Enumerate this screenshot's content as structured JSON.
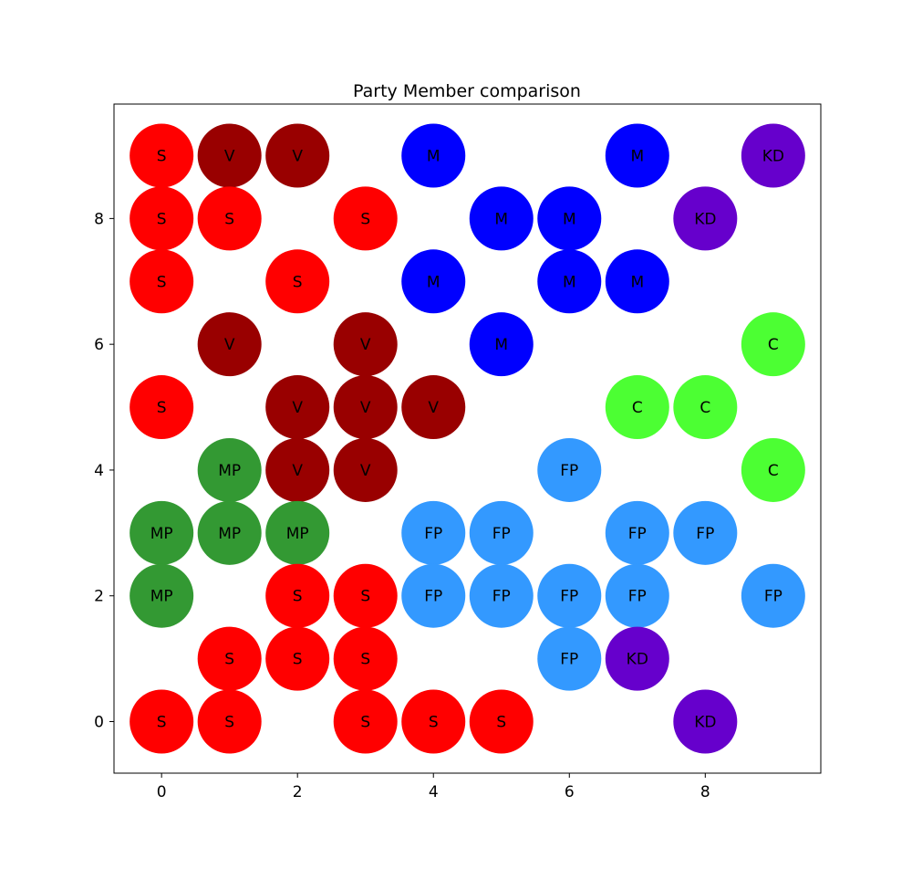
{
  "chart_data": {
    "type": "scatter",
    "title": "Party Member comparison",
    "xlabel": "",
    "ylabel": "",
    "xlim": [
      -0.7,
      9.7
    ],
    "ylim": [
      -0.82,
      9.82
    ],
    "xticks": [
      0,
      2,
      4,
      6,
      8
    ],
    "yticks": [
      0,
      2,
      4,
      6,
      8
    ],
    "grid": false,
    "legend": "none",
    "party_colors": {
      "S": "#ff0000",
      "V": "#990000",
      "M": "#0000ff",
      "KD": "#6600cc",
      "C": "#4cff33",
      "MP": "#339933",
      "FP": "#3399ff"
    },
    "points": [
      {
        "x": 0,
        "y": 9,
        "party": "S"
      },
      {
        "x": 1,
        "y": 9,
        "party": "V"
      },
      {
        "x": 2,
        "y": 9,
        "party": "V"
      },
      {
        "x": 4,
        "y": 9,
        "party": "M"
      },
      {
        "x": 7,
        "y": 9,
        "party": "M"
      },
      {
        "x": 9,
        "y": 9,
        "party": "KD"
      },
      {
        "x": 0,
        "y": 8,
        "party": "S"
      },
      {
        "x": 1,
        "y": 8,
        "party": "S"
      },
      {
        "x": 3,
        "y": 8,
        "party": "S"
      },
      {
        "x": 5,
        "y": 8,
        "party": "M"
      },
      {
        "x": 6,
        "y": 8,
        "party": "M"
      },
      {
        "x": 8,
        "y": 8,
        "party": "KD"
      },
      {
        "x": 0,
        "y": 7,
        "party": "S"
      },
      {
        "x": 2,
        "y": 7,
        "party": "S"
      },
      {
        "x": 4,
        "y": 7,
        "party": "M"
      },
      {
        "x": 6,
        "y": 7,
        "party": "M"
      },
      {
        "x": 7,
        "y": 7,
        "party": "M"
      },
      {
        "x": 1,
        "y": 6,
        "party": "V"
      },
      {
        "x": 3,
        "y": 6,
        "party": "V"
      },
      {
        "x": 5,
        "y": 6,
        "party": "M"
      },
      {
        "x": 9,
        "y": 6,
        "party": "C"
      },
      {
        "x": 0,
        "y": 5,
        "party": "S"
      },
      {
        "x": 2,
        "y": 5,
        "party": "V"
      },
      {
        "x": 3,
        "y": 5,
        "party": "V"
      },
      {
        "x": 4,
        "y": 5,
        "party": "V"
      },
      {
        "x": 7,
        "y": 5,
        "party": "C"
      },
      {
        "x": 8,
        "y": 5,
        "party": "C"
      },
      {
        "x": 1,
        "y": 4,
        "party": "MP"
      },
      {
        "x": 2,
        "y": 4,
        "party": "V"
      },
      {
        "x": 3,
        "y": 4,
        "party": "V"
      },
      {
        "x": 6,
        "y": 4,
        "party": "FP"
      },
      {
        "x": 9,
        "y": 4,
        "party": "C"
      },
      {
        "x": 0,
        "y": 3,
        "party": "MP"
      },
      {
        "x": 1,
        "y": 3,
        "party": "MP"
      },
      {
        "x": 2,
        "y": 3,
        "party": "MP"
      },
      {
        "x": 4,
        "y": 3,
        "party": "FP"
      },
      {
        "x": 5,
        "y": 3,
        "party": "FP"
      },
      {
        "x": 7,
        "y": 3,
        "party": "FP"
      },
      {
        "x": 8,
        "y": 3,
        "party": "FP"
      },
      {
        "x": 0,
        "y": 2,
        "party": "MP"
      },
      {
        "x": 2,
        "y": 2,
        "party": "S"
      },
      {
        "x": 3,
        "y": 2,
        "party": "S"
      },
      {
        "x": 4,
        "y": 2,
        "party": "FP"
      },
      {
        "x": 5,
        "y": 2,
        "party": "FP"
      },
      {
        "x": 6,
        "y": 2,
        "party": "FP"
      },
      {
        "x": 7,
        "y": 2,
        "party": "FP"
      },
      {
        "x": 9,
        "y": 2,
        "party": "FP"
      },
      {
        "x": 1,
        "y": 1,
        "party": "S"
      },
      {
        "x": 2,
        "y": 1,
        "party": "S"
      },
      {
        "x": 3,
        "y": 1,
        "party": "S"
      },
      {
        "x": 6,
        "y": 1,
        "party": "FP"
      },
      {
        "x": 7,
        "y": 1,
        "party": "KD"
      },
      {
        "x": 0,
        "y": 0,
        "party": "S"
      },
      {
        "x": 1,
        "y": 0,
        "party": "S"
      },
      {
        "x": 3,
        "y": 0,
        "party": "S"
      },
      {
        "x": 4,
        "y": 0,
        "party": "S"
      },
      {
        "x": 5,
        "y": 0,
        "party": "S"
      },
      {
        "x": 8,
        "y": 0,
        "party": "KD"
      }
    ]
  }
}
